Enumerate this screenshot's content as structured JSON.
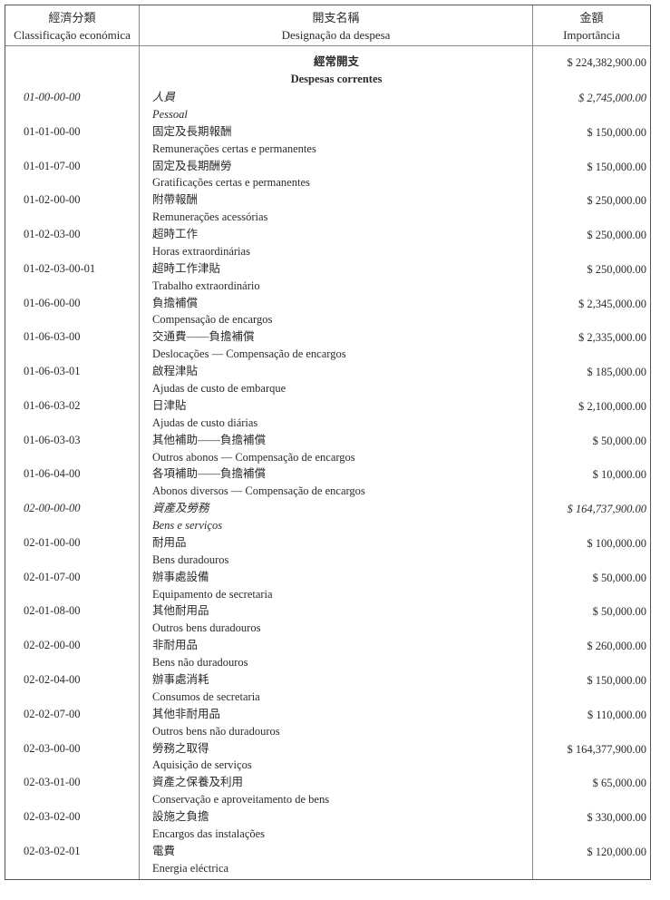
{
  "header": {
    "col1_zh": "經濟分類",
    "col1_pt": "Classificação económica",
    "col2_zh": "開支名稱",
    "col2_pt": "Designação da despesa",
    "col3_zh": "金額",
    "col3_pt": "Importância"
  },
  "section": {
    "title_zh": "經常開支",
    "title_pt": "Despesas correntes",
    "amount": "$ 224,382,900.00"
  },
  "rows": [
    {
      "code": "01-00-00-00",
      "zh": "人員",
      "pt": "Pessoal",
      "amount": "$ 2,745,000.00",
      "italic": true
    },
    {
      "code": "01-01-00-00",
      "zh": "固定及長期報酬",
      "pt": "Remunerações certas e permanentes",
      "amount": "$ 150,000.00"
    },
    {
      "code": "01-01-07-00",
      "zh": "固定及長期酬勞",
      "pt": "Gratificações certas e permanentes",
      "amount": "$ 150,000.00"
    },
    {
      "code": "01-02-00-00",
      "zh": "附帶報酬",
      "pt": "Remunerações acessórias",
      "amount": "$ 250,000.00"
    },
    {
      "code": "01-02-03-00",
      "zh": "超時工作",
      "pt": "Horas extraordinárias",
      "amount": "$ 250,000.00"
    },
    {
      "code": "01-02-03-00-01",
      "zh": "超時工作津貼",
      "pt": "Trabalho extraordinário",
      "amount": "$ 250,000.00"
    },
    {
      "code": "01-06-00-00",
      "zh": "負擔補償",
      "pt": "Compensação de encargos",
      "amount": "$ 2,345,000.00"
    },
    {
      "code": "01-06-03-00",
      "zh": "交通費——負擔補償",
      "pt": "Deslocações — Compensação de encargos",
      "amount": "$ 2,335,000.00"
    },
    {
      "code": "01-06-03-01",
      "zh": "啟程津貼",
      "pt": "Ajudas de custo de embarque",
      "amount": "$ 185,000.00"
    },
    {
      "code": "01-06-03-02",
      "zh": "日津貼",
      "pt": "Ajudas de custo diárias",
      "amount": "$ 2,100,000.00"
    },
    {
      "code": "01-06-03-03",
      "zh": "其他補助——負擔補償",
      "pt": "Outros abonos — Compensação de encargos",
      "amount": "$ 50,000.00"
    },
    {
      "code": "01-06-04-00",
      "zh": "各項補助——負擔補償",
      "pt": "Abonos diversos — Compensação de encargos",
      "amount": "$ 10,000.00"
    },
    {
      "code": "02-00-00-00",
      "zh": "資產及勞務",
      "pt": "Bens e serviços",
      "amount": "$ 164,737,900.00",
      "italic": true
    },
    {
      "code": "02-01-00-00",
      "zh": "耐用品",
      "pt": "Bens duradouros",
      "amount": "$ 100,000.00"
    },
    {
      "code": "02-01-07-00",
      "zh": "辦事處設備",
      "pt": "Equipamento de secretaria",
      "amount": "$ 50,000.00"
    },
    {
      "code": "02-01-08-00",
      "zh": "其他耐用品",
      "pt": "Outros bens duradouros",
      "amount": "$ 50,000.00"
    },
    {
      "code": "02-02-00-00",
      "zh": "非耐用品",
      "pt": "Bens não duradouros",
      "amount": "$ 260,000.00"
    },
    {
      "code": "02-02-04-00",
      "zh": "辦事處消耗",
      "pt": "Consumos de secretaria",
      "amount": "$ 150,000.00"
    },
    {
      "code": "02-02-07-00",
      "zh": "其他非耐用品",
      "pt": "Outros bens não duradouros",
      "amount": "$ 110,000.00"
    },
    {
      "code": "02-03-00-00",
      "zh": "勞務之取得",
      "pt": "Aquisição de serviços",
      "amount": "$ 164,377,900.00"
    },
    {
      "code": "02-03-01-00",
      "zh": "資產之保養及利用",
      "pt": "Conservação e aproveitamento de bens",
      "amount": "$ 65,000.00"
    },
    {
      "code": "02-03-02-00",
      "zh": "設施之負擔",
      "pt": "Encargos das instalações",
      "amount": "$ 330,000.00"
    },
    {
      "code": "02-03-02-01",
      "zh": "電費",
      "pt": "Energia eléctrica",
      "amount": "$ 120,000.00"
    }
  ]
}
